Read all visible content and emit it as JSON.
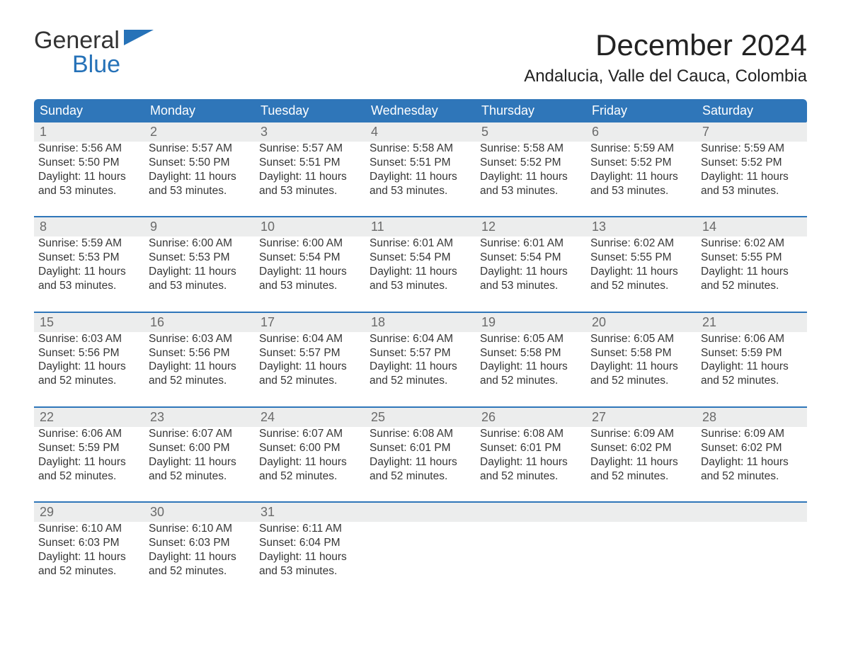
{
  "brand": {
    "text1": "General",
    "text2": "Blue",
    "color_dark": "#333333",
    "color_blue": "#2672b8"
  },
  "title": "December 2024",
  "location": "Andalucia, Valle del Cauca, Colombia",
  "colors": {
    "header_bg": "#2f76b9",
    "header_text": "#ffffff",
    "daynum_bg": "#eceded",
    "daynum_text": "#6a6a6a",
    "row_border": "#2f76b9",
    "body_text": "#363636",
    "page_bg": "#ffffff"
  },
  "typography": {
    "title_fontsize": 42,
    "location_fontsize": 24,
    "header_fontsize": 18,
    "daynum_fontsize": 18,
    "cell_fontsize": 15.5
  },
  "layout": {
    "columns": 7,
    "first_day_index": 0,
    "days_in_month": 31
  },
  "weekdays": [
    "Sunday",
    "Monday",
    "Tuesday",
    "Wednesday",
    "Thursday",
    "Friday",
    "Saturday"
  ],
  "days": [
    {
      "n": 1,
      "sunrise": "5:56 AM",
      "sunset": "5:50 PM",
      "daylight": "11 hours and 53 minutes."
    },
    {
      "n": 2,
      "sunrise": "5:57 AM",
      "sunset": "5:50 PM",
      "daylight": "11 hours and 53 minutes."
    },
    {
      "n": 3,
      "sunrise": "5:57 AM",
      "sunset": "5:51 PM",
      "daylight": "11 hours and 53 minutes."
    },
    {
      "n": 4,
      "sunrise": "5:58 AM",
      "sunset": "5:51 PM",
      "daylight": "11 hours and 53 minutes."
    },
    {
      "n": 5,
      "sunrise": "5:58 AM",
      "sunset": "5:52 PM",
      "daylight": "11 hours and 53 minutes."
    },
    {
      "n": 6,
      "sunrise": "5:59 AM",
      "sunset": "5:52 PM",
      "daylight": "11 hours and 53 minutes."
    },
    {
      "n": 7,
      "sunrise": "5:59 AM",
      "sunset": "5:52 PM",
      "daylight": "11 hours and 53 minutes."
    },
    {
      "n": 8,
      "sunrise": "5:59 AM",
      "sunset": "5:53 PM",
      "daylight": "11 hours and 53 minutes."
    },
    {
      "n": 9,
      "sunrise": "6:00 AM",
      "sunset": "5:53 PM",
      "daylight": "11 hours and 53 minutes."
    },
    {
      "n": 10,
      "sunrise": "6:00 AM",
      "sunset": "5:54 PM",
      "daylight": "11 hours and 53 minutes."
    },
    {
      "n": 11,
      "sunrise": "6:01 AM",
      "sunset": "5:54 PM",
      "daylight": "11 hours and 53 minutes."
    },
    {
      "n": 12,
      "sunrise": "6:01 AM",
      "sunset": "5:54 PM",
      "daylight": "11 hours and 53 minutes."
    },
    {
      "n": 13,
      "sunrise": "6:02 AM",
      "sunset": "5:55 PM",
      "daylight": "11 hours and 52 minutes."
    },
    {
      "n": 14,
      "sunrise": "6:02 AM",
      "sunset": "5:55 PM",
      "daylight": "11 hours and 52 minutes."
    },
    {
      "n": 15,
      "sunrise": "6:03 AM",
      "sunset": "5:56 PM",
      "daylight": "11 hours and 52 minutes."
    },
    {
      "n": 16,
      "sunrise": "6:03 AM",
      "sunset": "5:56 PM",
      "daylight": "11 hours and 52 minutes."
    },
    {
      "n": 17,
      "sunrise": "6:04 AM",
      "sunset": "5:57 PM",
      "daylight": "11 hours and 52 minutes."
    },
    {
      "n": 18,
      "sunrise": "6:04 AM",
      "sunset": "5:57 PM",
      "daylight": "11 hours and 52 minutes."
    },
    {
      "n": 19,
      "sunrise": "6:05 AM",
      "sunset": "5:58 PM",
      "daylight": "11 hours and 52 minutes."
    },
    {
      "n": 20,
      "sunrise": "6:05 AM",
      "sunset": "5:58 PM",
      "daylight": "11 hours and 52 minutes."
    },
    {
      "n": 21,
      "sunrise": "6:06 AM",
      "sunset": "5:59 PM",
      "daylight": "11 hours and 52 minutes."
    },
    {
      "n": 22,
      "sunrise": "6:06 AM",
      "sunset": "5:59 PM",
      "daylight": "11 hours and 52 minutes."
    },
    {
      "n": 23,
      "sunrise": "6:07 AM",
      "sunset": "6:00 PM",
      "daylight": "11 hours and 52 minutes."
    },
    {
      "n": 24,
      "sunrise": "6:07 AM",
      "sunset": "6:00 PM",
      "daylight": "11 hours and 52 minutes."
    },
    {
      "n": 25,
      "sunrise": "6:08 AM",
      "sunset": "6:01 PM",
      "daylight": "11 hours and 52 minutes."
    },
    {
      "n": 26,
      "sunrise": "6:08 AM",
      "sunset": "6:01 PM",
      "daylight": "11 hours and 52 minutes."
    },
    {
      "n": 27,
      "sunrise": "6:09 AM",
      "sunset": "6:02 PM",
      "daylight": "11 hours and 52 minutes."
    },
    {
      "n": 28,
      "sunrise": "6:09 AM",
      "sunset": "6:02 PM",
      "daylight": "11 hours and 52 minutes."
    },
    {
      "n": 29,
      "sunrise": "6:10 AM",
      "sunset": "6:03 PM",
      "daylight": "11 hours and 52 minutes."
    },
    {
      "n": 30,
      "sunrise": "6:10 AM",
      "sunset": "6:03 PM",
      "daylight": "11 hours and 52 minutes."
    },
    {
      "n": 31,
      "sunrise": "6:11 AM",
      "sunset": "6:04 PM",
      "daylight": "11 hours and 53 minutes."
    }
  ],
  "labels": {
    "sunrise": "Sunrise:",
    "sunset": "Sunset:",
    "daylight": "Daylight:"
  }
}
